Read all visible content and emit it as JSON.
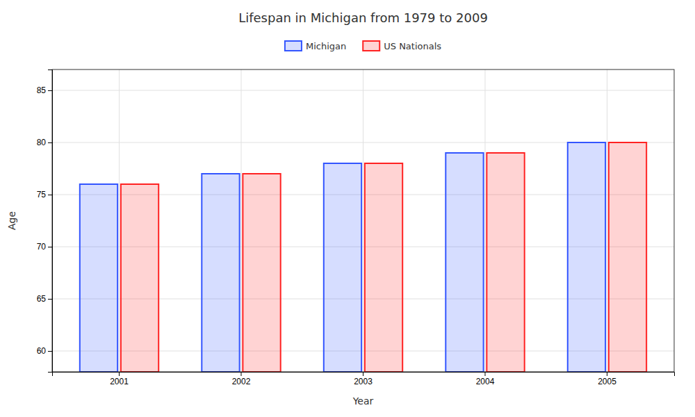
{
  "chart_data": {
    "type": "bar",
    "title": "Lifespan in Michigan from 1979 to 2009",
    "xlabel": "Year",
    "ylabel": "Age",
    "categories": [
      "2001",
      "2002",
      "2003",
      "2004",
      "2005"
    ],
    "series": [
      {
        "name": "Michigan",
        "color": "#3355ff",
        "values": [
          76,
          77,
          78,
          79,
          80
        ]
      },
      {
        "name": "US Nationals",
        "color": "#ff2222",
        "values": [
          76,
          77,
          78,
          79,
          80
        ]
      }
    ],
    "ylim": [
      58,
      87
    ],
    "yticks": [
      60,
      65,
      70,
      75,
      80,
      85
    ],
    "grid": true,
    "legend": "top"
  }
}
